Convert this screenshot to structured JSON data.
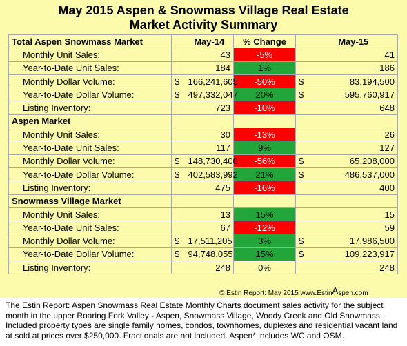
{
  "title_line1": "May 2015 Aspen & Snowmass Village Real Estate",
  "title_line2": "Market Activity Summary",
  "header": {
    "label": "Total Aspen Snowmass Market",
    "col1": "May-14",
    "col2": "% Change",
    "col3": "May-15"
  },
  "rows": [
    {
      "label": "Monthly Unit Sales:",
      "cur1": "",
      "v1": "43",
      "pct": "-5%",
      "tone": "neg",
      "cur2": "",
      "v2": "41"
    },
    {
      "label": "Year-to-Date Unit Sales:",
      "cur1": "",
      "v1": "184",
      "pct": "1%",
      "tone": "pos",
      "cur2": "",
      "v2": "186"
    },
    {
      "label": "Monthly Dollar Volume:",
      "cur1": "$",
      "v1": "166,241,605",
      "pct": "-50%",
      "tone": "neg",
      "cur2": "$",
      "v2": "83,194,500"
    },
    {
      "label": "Year-to-Date Dollar Volume:",
      "cur1": "$",
      "v1": "497,332,047",
      "pct": "20%",
      "tone": "pos",
      "cur2": "$",
      "v2": "595,760,917"
    },
    {
      "label": "Listing Inventory:",
      "cur1": "",
      "v1": "723",
      "pct": "-10%",
      "tone": "neg",
      "cur2": "",
      "v2": "648"
    },
    {
      "section": "Aspen Market"
    },
    {
      "label": "Monthly Unit Sales:",
      "cur1": "",
      "v1": "30",
      "pct": "-13%",
      "tone": "neg",
      "cur2": "",
      "v2": "26"
    },
    {
      "label": "Year-to-Date Unit Sales:",
      "cur1": "",
      "v1": "117",
      "pct": "9%",
      "tone": "pos",
      "cur2": "",
      "v2": "127"
    },
    {
      "label": "Monthly Dollar Volume:",
      "cur1": "$",
      "v1": "148,730,400",
      "pct": "-56%",
      "tone": "neg",
      "cur2": "$",
      "v2": "65,208,000"
    },
    {
      "label": "Year-to-Date Dollar Volume:",
      "cur1": "$",
      "v1": "402,583,992",
      "pct": "21%",
      "tone": "pos",
      "cur2": "$",
      "v2": "486,537,000"
    },
    {
      "label": "Listing Inventory:",
      "cur1": "",
      "v1": "475",
      "pct": "-16%",
      "tone": "neg",
      "cur2": "",
      "v2": "400"
    },
    {
      "section": "Snowmass Village Market"
    },
    {
      "label": "Monthly Unit Sales:",
      "cur1": "",
      "v1": "13",
      "pct": "15%",
      "tone": "pos",
      "cur2": "",
      "v2": "15"
    },
    {
      "label": "Year-to-Date Unit Sales:",
      "cur1": "",
      "v1": "67",
      "pct": "-12%",
      "tone": "neg",
      "cur2": "",
      "v2": "59"
    },
    {
      "label": "Monthly Dollar Volume:",
      "cur1": "$",
      "v1": "17,511,205",
      "pct": "3%",
      "tone": "pos",
      "cur2": "$",
      "v2": "17,986,500"
    },
    {
      "label": "Year-to-Date Dollar Volume:",
      "cur1": "$",
      "v1": "94,748,055",
      "pct": "15%",
      "tone": "pos",
      "cur2": "$",
      "v2": "109,223,917"
    },
    {
      "label": "Listing Inventory:",
      "cur1": "",
      "v1": "248",
      "pct": "0%",
      "tone": "neu",
      "cur2": "",
      "v2": "248"
    }
  ],
  "copyright_prefix": "© Estin Report: May 2015 www.Estin",
  "copyright_big": "A",
  "copyright_suffix": "spen.com",
  "footer_text": "The Estin Report: Aspen Snowmass Real Estate Monthly Charts document sales activity for the subject month in the upper Roaring Fork Valley - Aspen, Snowmass Village, Woody Creek and Old Snowmass. Included property types are single family homes, condos, townhomes, duplexes and residential vacant land at sold at prices over $250,000. Fractionals are not included. Aspen* includes WC and OSM.",
  "colors": {
    "background": "#fbfbab",
    "negative": "#ff0000",
    "positive": "#22a63a"
  }
}
